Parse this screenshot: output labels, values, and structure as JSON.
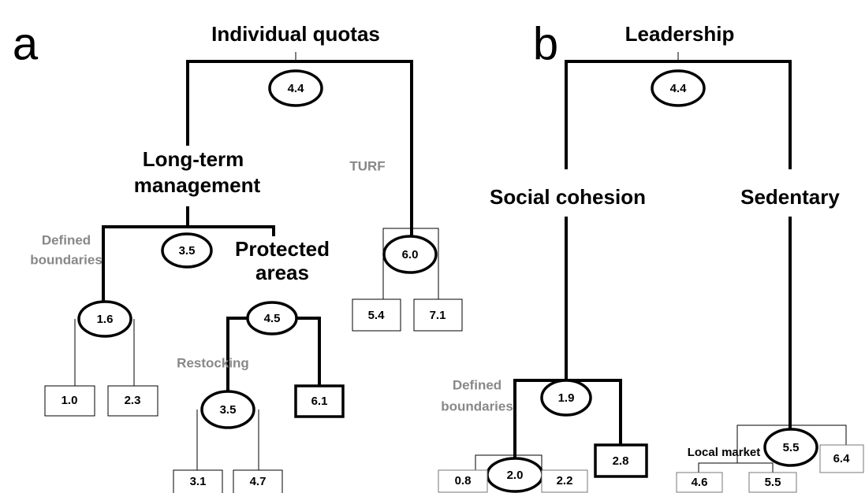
{
  "panel_a": {
    "letter": "a",
    "title": "Individual quotas",
    "node_values": [
      "4.4",
      "3.5",
      "1.6",
      "4.5",
      "3.5",
      "6.0"
    ],
    "long_term": [
      "Long-term",
      "management"
    ],
    "defined_boundaries": [
      "Defined",
      "boundaries"
    ],
    "protected_areas": [
      "Protected",
      "areas"
    ],
    "restocking": "Restocking",
    "turf": "TURF",
    "leaves": [
      "1.0",
      "2.3",
      "6.1",
      "3.1",
      "4.7",
      "5.4",
      "7.1"
    ]
  },
  "panel_b": {
    "letter": "b",
    "title": "Leadership",
    "node_values": [
      "4.4",
      "1.9",
      "2.0",
      "5.5"
    ],
    "social_cohesion": "Social cohesion",
    "sedentary": "Sedentary",
    "defined_boundaries": [
      "Defined",
      "boundaries"
    ],
    "local_market": "Local market",
    "leaves": [
      "0.8",
      "2.2",
      "2.8",
      "4.6",
      "5.5",
      "6.4"
    ]
  }
}
